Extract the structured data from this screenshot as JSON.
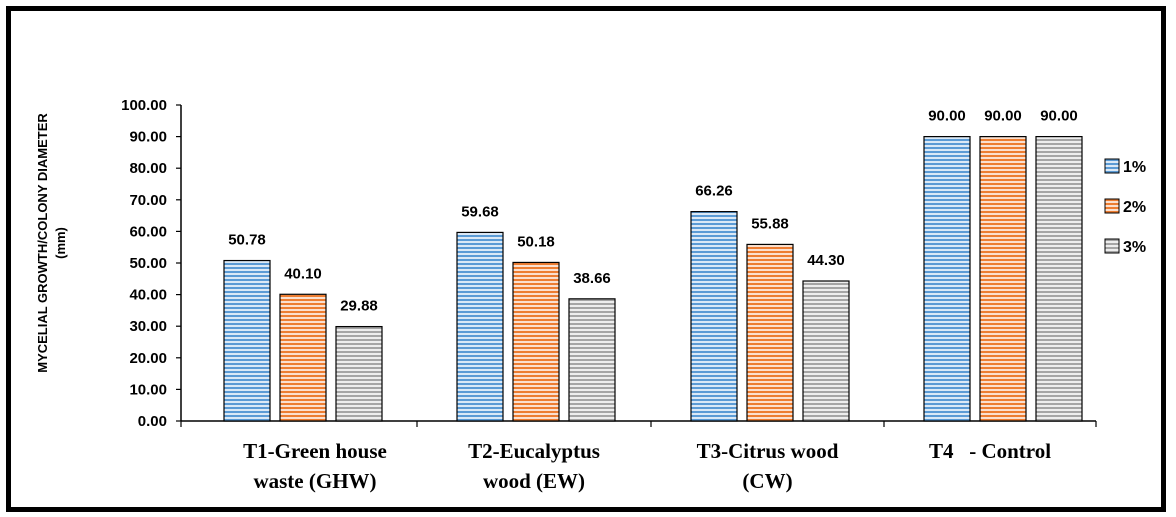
{
  "chart_data": {
    "type": "bar",
    "title": "",
    "ylabel_line1": "MYCELIAL GROWTH/COLONY DIAMETER",
    "ylabel_line2": "(mm)",
    "xlabel": "",
    "ylim": [
      0,
      100
    ],
    "yticks": [
      "0.00",
      "10.00",
      "20.00",
      "30.00",
      "40.00",
      "50.00",
      "60.00",
      "70.00",
      "80.00",
      "90.00",
      "100.00"
    ],
    "categories": [
      [
        "T1-Green house",
        "waste (GHW)"
      ],
      [
        "T2-Eucalyptus",
        "wood (EW)"
      ],
      [
        "T3-Citrus wood",
        "(CW)"
      ],
      [
        "T4   - Control"
      ]
    ],
    "series": [
      {
        "name": "1%",
        "values": [
          50.78,
          59.68,
          66.26,
          90.0
        ],
        "labels": [
          "50.78",
          "59.68",
          "66.26",
          "90.00"
        ],
        "color": "#5b9bd5",
        "stripe": "#dbe9f6"
      },
      {
        "name": "2%",
        "values": [
          40.1,
          50.18,
          55.88,
          90.0
        ],
        "labels": [
          "40.10",
          "50.18",
          "55.88",
          "90.00"
        ],
        "color": "#ed7d31",
        "stripe": "#fbe0cf"
      },
      {
        "name": "3%",
        "values": [
          29.88,
          38.66,
          44.3,
          90.0
        ],
        "labels": [
          "29.88",
          "38.66",
          "44.30",
          "90.00"
        ],
        "color": "#a5a5a5",
        "stripe": "#ededed"
      }
    ],
    "legend_position": "right",
    "grid": false
  }
}
